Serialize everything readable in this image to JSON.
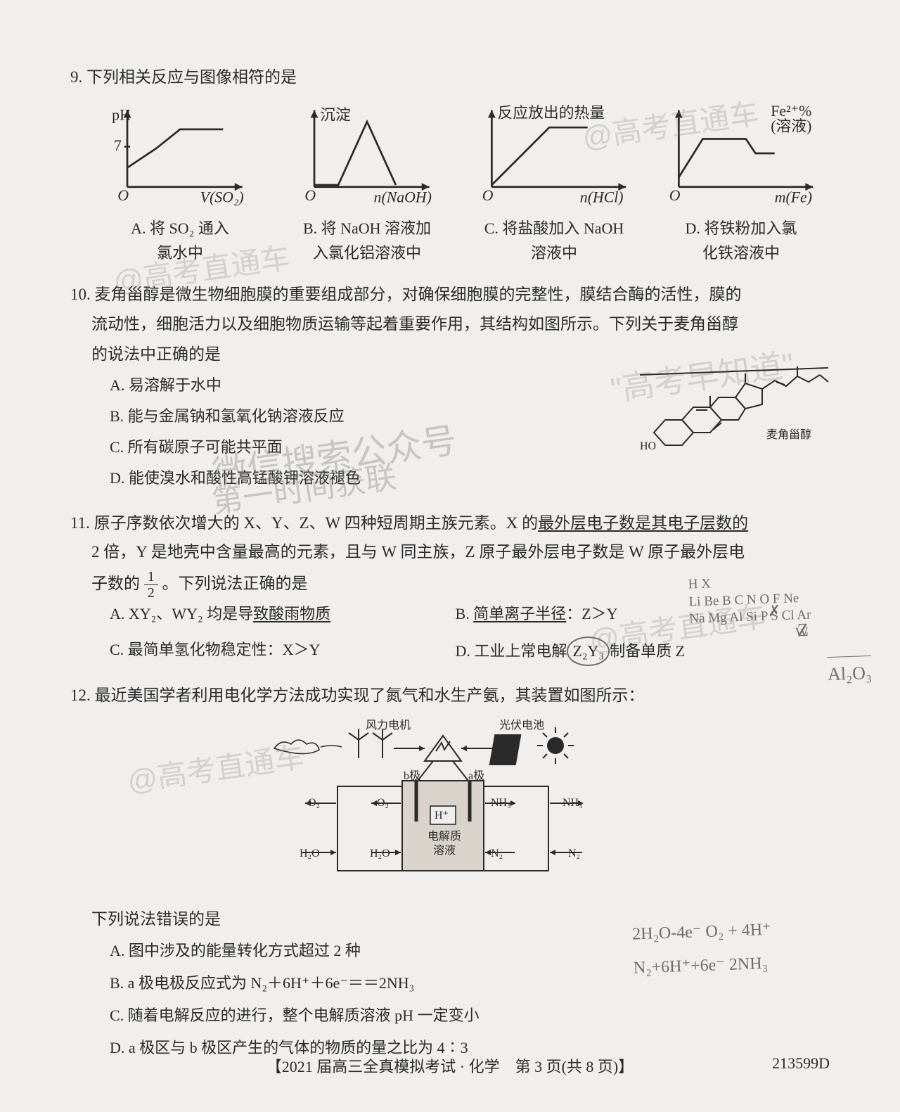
{
  "colors": {
    "ink": "#2a2a2a",
    "paper": "#f0efed",
    "watermark": "rgba(120,120,120,0.25)",
    "pencil": "#6d6d6d",
    "axis_width": 2,
    "curve_width": 2
  },
  "watermarks": {
    "w1": "@高考直通车",
    "w2": "@高考直通车",
    "w3": "\"高考早知道\"",
    "w4a": "微信搜索公众号",
    "w4b": "第一时间获联",
    "w5": "@高考直通车",
    "w6": "@高考直通车"
  },
  "q9": {
    "num": "9.",
    "stem": "下列相关反应与图像相符的是",
    "charts": {
      "A": {
        "type": "line",
        "y_label": "pH",
        "x_label": "V(SO₂)",
        "y_tick": "7",
        "points": [
          [
            0,
            60
          ],
          [
            30,
            40
          ],
          [
            55,
            20
          ],
          [
            100,
            20
          ]
        ],
        "ylim": [
          0,
          80
        ],
        "xlim": [
          0,
          110
        ]
      },
      "B": {
        "type": "line",
        "y_label": "沉淀",
        "x_label": "n(NaOH)",
        "points": [
          [
            0,
            78
          ],
          [
            25,
            78
          ],
          [
            55,
            12
          ],
          [
            85,
            78
          ]
        ],
        "ylim": [
          0,
          80
        ],
        "xlim": [
          0,
          110
        ]
      },
      "C": {
        "type": "line",
        "y_label": "反应放出的热量",
        "x_label": "n(HCl)",
        "points": [
          [
            0,
            78
          ],
          [
            60,
            18
          ],
          [
            100,
            18
          ]
        ],
        "ylim": [
          0,
          80
        ],
        "xlim": [
          0,
          110
        ]
      },
      "D": {
        "type": "line",
        "y_label_main": "Fe²⁺%",
        "y_label_sub": "(溶液)",
        "x_label": "m(Fe)",
        "points": [
          [
            0,
            70
          ],
          [
            25,
            30
          ],
          [
            70,
            30
          ],
          [
            80,
            45
          ],
          [
            100,
            45
          ]
        ],
        "ylim": [
          0,
          80
        ],
        "xlim": [
          0,
          110
        ]
      }
    },
    "options": {
      "A": {
        "l1": "A. 将 SO₂ 通入",
        "l2": "氯水中"
      },
      "B": {
        "l1": "B. 将 NaOH 溶液加",
        "l2": "入氯化铝溶液中"
      },
      "C": {
        "l1": "C. 将盐酸加入 NaOH",
        "l2": "溶液中"
      },
      "D": {
        "l1": "D. 将铁粉加入氯",
        "l2": "化铁溶液中"
      }
    }
  },
  "q10": {
    "num": "10.",
    "stem_l1": "麦角甾醇是微生物细胞膜的重要组成部分，对确保细胞膜的完整性，膜结合酶的活性，膜的",
    "stem_l2": "流动性，细胞活力以及细胞物质运输等起着重要作用，其结构如图所示。下列关于麦角甾醇",
    "stem_l3": "的说法中正确的是",
    "molecule_label": "麦角甾醇",
    "molecule_oh": "HO",
    "opts": {
      "A": "A. 易溶解于水中",
      "B": "B. 能与金属钠和氢氧化钠溶液反应",
      "C": "C. 所有碳原子可能共平面",
      "D": "D. 能使溴水和酸性高锰酸钾溶液褪色"
    }
  },
  "q11": {
    "num": "11.",
    "stem_l1_a": "原子序数依次增大的 X、Y、Z、W 四种短周期主族元素。X 的",
    "stem_l1_b": "最外层电子数是其电子层数的",
    "stem_l2_a": "2 倍，Y 是地壳中含量最高的元素，且与 W 同主族，Z 原子最外层电子数是 W 原子最外层电",
    "stem_l3_a": "子数的",
    "stem_l3_b": "。下列说法正确的是",
    "frac_n": "1",
    "frac_d": "2",
    "opts": {
      "A_pre": "A. XY₂、WY₂ 均是导",
      "A_u": "致酸雨物质",
      "B_pre": "B. ",
      "B_u": "简单离子半径",
      "B_post": "：Z＞Y",
      "C": "C. 最简单氢化物稳定性：X＞Y",
      "D_pre": "D. 工业上常电解",
      "D_mid": "Z₂Y₃",
      "D_post": "制备单质 Z"
    },
    "handwriting": {
      "row1": "H  X",
      "row2": "Li Be B C  N  O  F  Ne",
      "row3": "Na Mg Al Si P  S Cl Ar",
      "row4": "W",
      "arrow": "Z",
      "bottom": "Al₂O₃",
      "strike_b": "✗",
      "circle_d": "○"
    }
  },
  "q12": {
    "num": "12.",
    "stem": "最近美国学者利用电化学方法成功实现了氮气和水生产氨，其装置如图所示：",
    "diagram": {
      "labels": {
        "wind": "风力电机",
        "pv": "光伏电池",
        "a": "a极",
        "b": "b极",
        "hplus": "H⁺",
        "elec": "电解质",
        "soln": "溶液",
        "O2": "O₂",
        "H2O": "H₂O",
        "NH3": "NH₃",
        "N2": "N₂"
      },
      "colors": {
        "cell_fill": "#d9d3cc",
        "line": "#2a2a2a"
      }
    },
    "prompt": "下列说法错误的是",
    "opts": {
      "A": "A. 图中涉及的能量转化方式超过 2 种",
      "B": "B. a 极电极反应式为 N₂＋6H⁺＋6e⁻＝＝2NH₃",
      "C": "C. 随着电解反应的进行，整个电解质溶液 pH 一定变小",
      "D": "D. a 极区与 b 极区产生的气体的物质的量之比为 4∶3"
    },
    "handwriting": {
      "h1": "2H₂O-4e⁻  O₂ + 4H⁺",
      "h2": "N₂+6H⁺+6e⁻  2NH₃"
    }
  },
  "footer": {
    "main": "【2021 届高三全真模拟考试 · 化学　第 3 页(共 8 页)】",
    "code": "213599D"
  }
}
